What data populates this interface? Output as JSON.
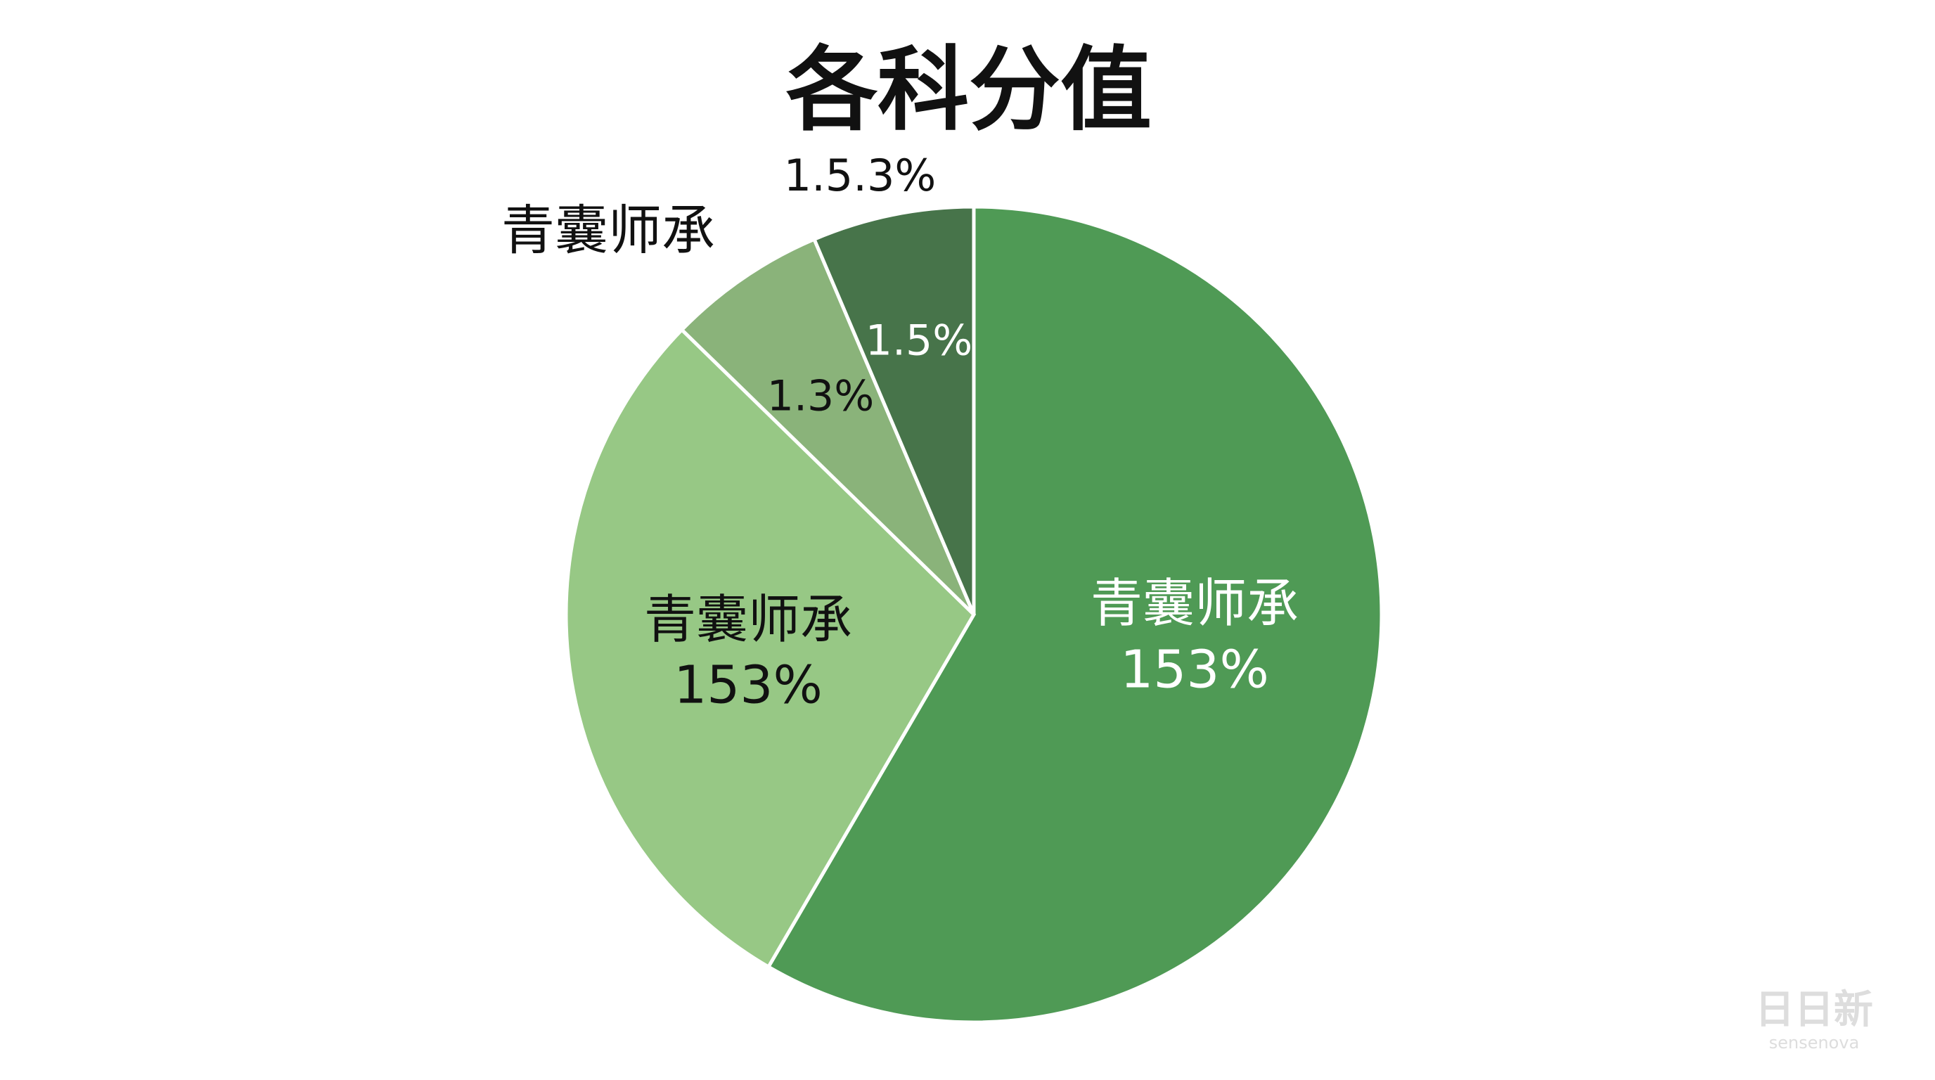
{
  "chart_data": {
    "type": "pie",
    "title": "各科分值",
    "values": [
      58.4,
      28.9,
      6.3,
      6.4
    ],
    "colors": [
      "#4f9a55",
      "#97c885",
      "#8ab37a",
      "#47744a"
    ],
    "slice_labels": [
      [
        "青囊师承",
        "153%"
      ],
      [
        "青囊师承",
        "153%"
      ],
      [
        "1.3%"
      ],
      [
        "1.5%"
      ]
    ],
    "outside_labels": [
      "青囊师承",
      "1.5.3%"
    ],
    "watermark": [
      "日日新",
      "sensenova"
    ]
  }
}
